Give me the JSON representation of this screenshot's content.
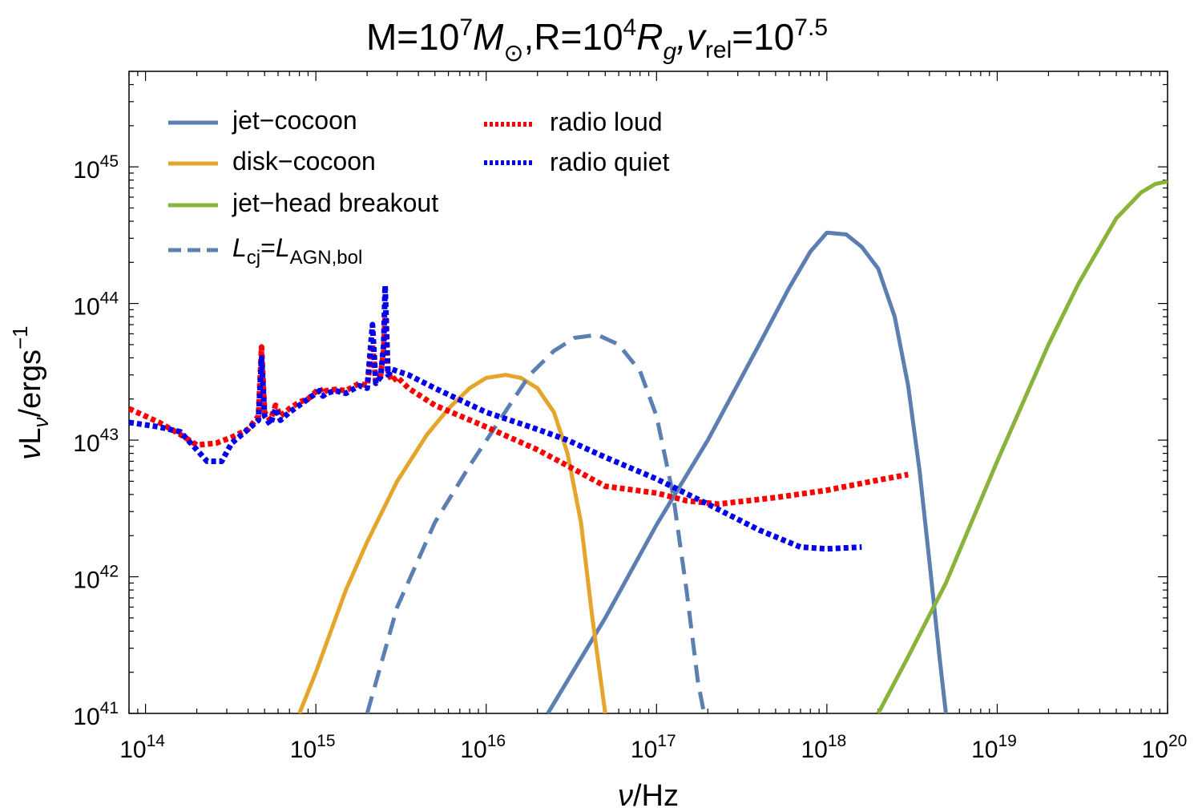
{
  "chart_data": {
    "type": "line",
    "title": {
      "m_label": "M=10",
      "m_exp": "7",
      "m_sym": "M",
      "m_sub": "⊙",
      "r_label": ",R=10",
      "r_exp": "4",
      "r_sym": "R",
      "r_sub": "g",
      "v_sym": ",v",
      "v_sub": "rel",
      "v_eq": "=10",
      "v_exp": "7.5"
    },
    "xlabel": {
      "sym": "ν",
      "unit": "/Hz"
    },
    "ylabel": {
      "sym": "ν",
      "mid": "L",
      "sub": "ν",
      "unit": "/ergs",
      "exp": "−1"
    },
    "xscale": "log",
    "yscale": "log",
    "xlim": [
      80000000000000.0,
      1e+20
    ],
    "ylim": [
      1e+41,
      5e+45
    ],
    "grid": false,
    "legend_position": "top-left",
    "x_ticks": [
      {
        "base": "10",
        "exp": "14",
        "value": 14
      },
      {
        "base": "10",
        "exp": "15",
        "value": 15
      },
      {
        "base": "10",
        "exp": "16",
        "value": 16
      },
      {
        "base": "10",
        "exp": "17",
        "value": 17
      },
      {
        "base": "10",
        "exp": "18",
        "value": 18
      },
      {
        "base": "10",
        "exp": "19",
        "value": 19
      },
      {
        "base": "10",
        "exp": "20",
        "value": 20
      }
    ],
    "y_ticks": [
      {
        "base": "10",
        "exp": "41",
        "value": 41
      },
      {
        "base": "10",
        "exp": "42",
        "value": 42
      },
      {
        "base": "10",
        "exp": "43",
        "value": 43
      },
      {
        "base": "10",
        "exp": "44",
        "value": 44
      },
      {
        "base": "10",
        "exp": "45",
        "value": 45
      }
    ],
    "series": [
      {
        "key": "jet-cocoon",
        "name": "jet−cocoon",
        "color": "#5b7fb0",
        "style": "solid",
        "x": [
          2.3e+16,
          5e+16,
          1e+17,
          2e+17,
          4e+17,
          6e+17,
          8e+17,
          1e+18,
          1.3e+18,
          1.6e+18,
          2e+18,
          2.5e+18,
          3e+18,
          3.5e+18,
          4e+18,
          4.6e+18,
          5e+18
        ],
        "y": [
          1e+41,
          5e+41,
          2.4e+42,
          1e+43,
          5e+43,
          1.3e+44,
          2.4e+44,
          3.3e+44,
          3.2e+44,
          2.6e+44,
          1.8e+44,
          8e+43,
          2.5e+43,
          6e+42,
          1.3e+42,
          2.5e+41,
          1e+41
        ]
      },
      {
        "key": "disk-cocoon",
        "name": "disk−cocoon",
        "color": "#e3a52b",
        "style": "solid",
        "x": [
          800000000000000.0,
          1000000000000000.0,
          1500000000000000.0,
          2000000000000000.0,
          3000000000000000.0,
          4500000000000000.0,
          6000000000000000.0,
          8000000000000000.0,
          1e+16,
          1.3e+16,
          1.6e+16,
          2e+16,
          2.5e+16,
          3e+16,
          3.6e+16,
          4.2e+16,
          5e+16
        ],
        "y": [
          1e+41,
          2e+41,
          8e+41,
          1.8e+42,
          5e+42,
          1.1e+43,
          1.7e+43,
          2.4e+43,
          2.85e+43,
          3e+43,
          2.85e+43,
          2.4e+43,
          1.6e+43,
          8e+42,
          2.5e+42,
          5e+41,
          1e+41
        ]
      },
      {
        "key": "jet-head",
        "name": "jet−head breakout",
        "color": "#8ab33b",
        "style": "solid",
        "x": [
          2e+18,
          3e+18,
          5e+18,
          1e+19,
          2e+19,
          3e+19,
          5e+19,
          7e+19,
          8.5e+19,
          1e+20
        ],
        "y": [
          1e+41,
          2.6e+41,
          9e+41,
          7e+42,
          5e+43,
          1.4e+44,
          4.2e+44,
          6.5e+44,
          7.5e+44,
          7.8e+44
        ]
      },
      {
        "key": "lcj",
        "name_sym": "L",
        "name_sub": "cj",
        "name_eq": "=",
        "name_sym2": "L",
        "name_sub2": "AGN,bol",
        "color": "#5b7fb0",
        "style": "dashed",
        "x": [
          2000000000000000.0,
          3000000000000000.0,
          5000000000000000.0,
          8000000000000000.0,
          1.2e+16,
          1.8e+16,
          2.5e+16,
          3.3e+16,
          4.5e+16,
          6e+16,
          8e+16,
          1e+17,
          1.25e+17,
          1.5e+17,
          1.75e+17,
          1.9e+17
        ],
        "y": [
          1e+41,
          6e+41,
          2.5e+42,
          6.5e+42,
          1.4e+43,
          3e+43,
          4.5e+43,
          5.6e+43,
          5.9e+43,
          5e+43,
          3.2e+43,
          1.5e+43,
          4e+42,
          8e+41,
          1.7e+41,
          1e+41
        ]
      },
      {
        "key": "radio-loud",
        "name": "radio loud",
        "color": "#ff0000",
        "style": "dotted",
        "x": [
          80000000000000.0,
          120000000000000.0,
          160000000000000.0,
          200000000000000.0,
          260000000000000.0,
          320000000000000.0,
          400000000000000.0,
          460000000000000.0,
          480000000000000.0,
          500000000000000.0,
          540000000000000.0,
          580000000000000.0,
          620000000000000.0,
          700000000000000.0,
          800000000000000.0,
          900000000000000.0,
          1050000000000000.0,
          1100000000000000.0,
          1150000000000000.0,
          1300000000000000.0,
          1500000000000000.0,
          1800000000000000.0,
          2000000000000000.0,
          2150000000000000.0,
          2250000000000000.0,
          2400000000000000.0,
          2500000000000000.0,
          2550000000000000.0,
          2650000000000000.0,
          2800000000000000.0,
          3000000000000000.0,
          3500000000000000.0,
          5000000000000000.0,
          1e+16,
          2e+16,
          3e+16,
          5e+16,
          1e+17,
          1.5e+17,
          2.3e+17,
          5e+17,
          1e+18,
          2e+18,
          3e+18
        ],
        "y": [
          1.7e+43,
          1.35e+43,
          1.1e+43,
          9.2e+42,
          9.5e+42,
          1.05e+43,
          1.2e+43,
          1.5e+43,
          4.8e+43,
          1.6e+43,
          1.4e+43,
          1.8e+43,
          1.5e+43,
          1.7e+43,
          1.9e+43,
          2e+43,
          2.4e+43,
          2.2e+43,
          2.3e+43,
          2.35e+43,
          2.3e+43,
          2.6e+43,
          2.5e+43,
          5e+43,
          2.7e+43,
          3e+43,
          4.5e+43,
          8e+43,
          3.2e+43,
          2.7e+43,
          2.9e+43,
          2.4e+43,
          1.8e+43,
          1.25e+43,
          8.5e+42,
          6.5e+42,
          4.6e+42,
          4.1e+42,
          3.6e+42,
          3.4e+42,
          3.8e+42,
          4.3e+42,
          5.1e+42,
          5.6e+42
        ]
      },
      {
        "key": "radio-quiet",
        "name": "radio quiet",
        "color": "#0000ee",
        "style": "dotted",
        "x": [
          80000000000000.0,
          120000000000000.0,
          160000000000000.0,
          200000000000000.0,
          230000000000000.0,
          280000000000000.0,
          320000000000000.0,
          400000000000000.0,
          460000000000000.0,
          480000000000000.0,
          500000000000000.0,
          540000000000000.0,
          580000000000000.0,
          620000000000000.0,
          700000000000000.0,
          800000000000000.0,
          900000000000000.0,
          1050000000000000.0,
          1100000000000000.0,
          1150000000000000.0,
          1300000000000000.0,
          1500000000000000.0,
          1800000000000000.0,
          2000000000000000.0,
          2150000000000000.0,
          2250000000000000.0,
          2400000000000000.0,
          2500000000000000.0,
          2550000000000000.0,
          2650000000000000.0,
          2800000000000000.0,
          3000000000000000.0,
          3500000000000000.0,
          5000000000000000.0,
          1e+16,
          2e+16,
          3e+16,
          5e+16,
          1e+17,
          2e+17,
          4e+17,
          7e+17,
          1e+18,
          1.6e+18
        ],
        "y": [
          1.35e+43,
          1.25e+43,
          1.15e+43,
          8.5e+42,
          7e+42,
          7e+42,
          9.5e+42,
          1.2e+43,
          1.4e+43,
          4e+43,
          1.5e+43,
          1.3e+43,
          1.7e+43,
          1.4e+43,
          1.6e+43,
          1.8e+43,
          2e+43,
          2.3e+43,
          2.1e+43,
          2.2e+43,
          2.3e+43,
          2.2e+43,
          2.5e+43,
          2.4e+43,
          7e+43,
          2.6e+43,
          2.9e+43,
          5e+43,
          1.35e+44,
          3e+43,
          3.3e+43,
          3.2e+43,
          3e+43,
          2.4e+43,
          1.6e+43,
          1.2e+43,
          1e+43,
          7.5e+42,
          5.2e+42,
          3.4e+42,
          2.2e+42,
          1.65e+42,
          1.6e+42,
          1.65e+42
        ]
      }
    ]
  }
}
